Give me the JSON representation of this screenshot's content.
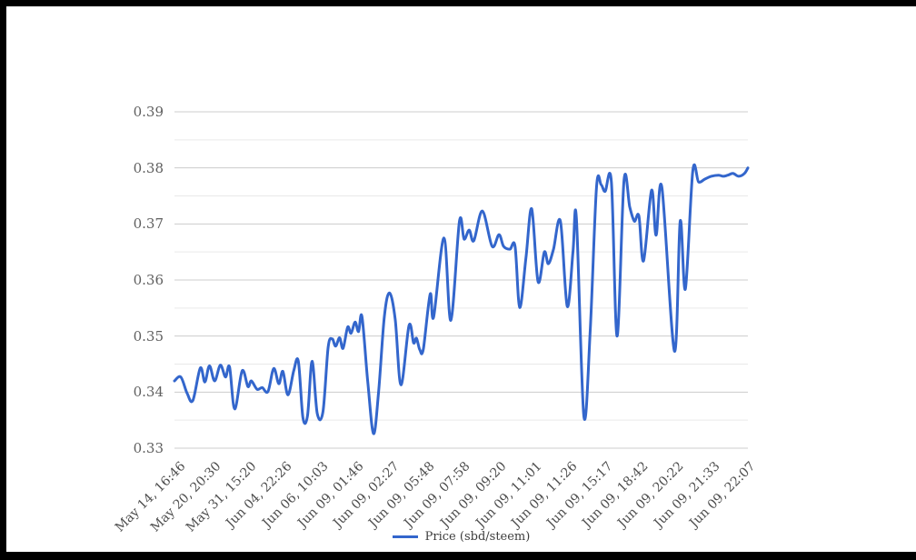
{
  "frame": {
    "border_color": "#000000",
    "page_background": "#ffffff"
  },
  "chart_data": {
    "type": "line",
    "title": "",
    "xlabel": "",
    "ylabel": "",
    "legend": {
      "position": "bottom",
      "label": "Price (sbd/steem)"
    },
    "grid": {
      "on": true,
      "major_color": "#cccccc",
      "minor_color": "#e9e9e9"
    },
    "y_axis": {
      "min": 0.33,
      "max": 0.39,
      "major_interval": 0.01,
      "minor_interval": 0.005,
      "ticks": [
        "0.39",
        "0.38",
        "0.37",
        "0.36",
        "0.35",
        "0.34",
        "0.33"
      ]
    },
    "x_axis": {
      "tick_labels": [
        "May 14, 16:46",
        "May 20, 20:30",
        "May 31, 15:20",
        "Jun 04, 22:26",
        "Jun 06, 10:03",
        "Jun 09, 01:46",
        "Jun 09, 02:27",
        "Jun 09, 05:48",
        "Jun 09, 07:58",
        "Jun 09, 09:20",
        "Jun 09, 11:01",
        "Jun 09, 11:26",
        "Jun 09, 15:17",
        "Jun 09, 18:42",
        "Jun 09, 20:22",
        "Jun 09, 21:33",
        "Jun 09, 22:07"
      ],
      "label_rotation_deg": -45
    },
    "series": [
      {
        "name": "Price (sbd/steem)",
        "color": "#3366cc",
        "line_width": 3,
        "points": [
          [
            0.0,
            0.342
          ],
          [
            0.011,
            0.3427
          ],
          [
            0.022,
            0.3398
          ],
          [
            0.032,
            0.3385
          ],
          [
            0.045,
            0.3443
          ],
          [
            0.053,
            0.3418
          ],
          [
            0.061,
            0.3447
          ],
          [
            0.07,
            0.342
          ],
          [
            0.08,
            0.3448
          ],
          [
            0.089,
            0.3427
          ],
          [
            0.096,
            0.3445
          ],
          [
            0.105,
            0.337
          ],
          [
            0.118,
            0.3438
          ],
          [
            0.128,
            0.341
          ],
          [
            0.134,
            0.342
          ],
          [
            0.144,
            0.3405
          ],
          [
            0.153,
            0.3408
          ],
          [
            0.163,
            0.3401
          ],
          [
            0.173,
            0.3442
          ],
          [
            0.182,
            0.3415
          ],
          [
            0.189,
            0.3437
          ],
          [
            0.198,
            0.3395
          ],
          [
            0.208,
            0.3438
          ],
          [
            0.216,
            0.3455
          ],
          [
            0.224,
            0.3355
          ],
          [
            0.232,
            0.3358
          ],
          [
            0.24,
            0.3455
          ],
          [
            0.249,
            0.3362
          ],
          [
            0.259,
            0.3365
          ],
          [
            0.268,
            0.348
          ],
          [
            0.275,
            0.3495
          ],
          [
            0.281,
            0.3482
          ],
          [
            0.288,
            0.3497
          ],
          [
            0.294,
            0.3478
          ],
          [
            0.302,
            0.3516
          ],
          [
            0.308,
            0.3505
          ],
          [
            0.315,
            0.3525
          ],
          [
            0.321,
            0.3508
          ],
          [
            0.327,
            0.3535
          ],
          [
            0.337,
            0.342
          ],
          [
            0.347,
            0.3326
          ],
          [
            0.356,
            0.34
          ],
          [
            0.366,
            0.3534
          ],
          [
            0.375,
            0.3577
          ],
          [
            0.385,
            0.353
          ],
          [
            0.395,
            0.3413
          ],
          [
            0.409,
            0.3519
          ],
          [
            0.417,
            0.3488
          ],
          [
            0.422,
            0.3496
          ],
          [
            0.428,
            0.3475
          ],
          [
            0.434,
            0.3477
          ],
          [
            0.446,
            0.3575
          ],
          [
            0.452,
            0.3534
          ],
          [
            0.47,
            0.3675
          ],
          [
            0.482,
            0.3528
          ],
          [
            0.497,
            0.3705
          ],
          [
            0.505,
            0.3673
          ],
          [
            0.514,
            0.3689
          ],
          [
            0.522,
            0.367
          ],
          [
            0.537,
            0.3723
          ],
          [
            0.554,
            0.366
          ],
          [
            0.566,
            0.3681
          ],
          [
            0.574,
            0.366
          ],
          [
            0.585,
            0.3655
          ],
          [
            0.594,
            0.366
          ],
          [
            0.602,
            0.3551
          ],
          [
            0.613,
            0.364
          ],
          [
            0.623,
            0.3727
          ],
          [
            0.634,
            0.3597
          ],
          [
            0.645,
            0.365
          ],
          [
            0.652,
            0.3629
          ],
          [
            0.661,
            0.3655
          ],
          [
            0.673,
            0.3705
          ],
          [
            0.685,
            0.3553
          ],
          [
            0.695,
            0.365
          ],
          [
            0.701,
            0.371
          ],
          [
            0.714,
            0.3357
          ],
          [
            0.725,
            0.351
          ],
          [
            0.736,
            0.3765
          ],
          [
            0.744,
            0.377
          ],
          [
            0.751,
            0.3758
          ],
          [
            0.762,
            0.3775
          ],
          [
            0.772,
            0.35
          ],
          [
            0.784,
            0.3778
          ],
          [
            0.794,
            0.373
          ],
          [
            0.802,
            0.3705
          ],
          [
            0.81,
            0.3714
          ],
          [
            0.818,
            0.3634
          ],
          [
            0.832,
            0.376
          ],
          [
            0.84,
            0.368
          ],
          [
            0.85,
            0.3765
          ],
          [
            0.872,
            0.3473
          ],
          [
            0.882,
            0.3705
          ],
          [
            0.891,
            0.3584
          ],
          [
            0.904,
            0.3795
          ],
          [
            0.914,
            0.3775
          ],
          [
            0.925,
            0.378
          ],
          [
            0.936,
            0.3785
          ],
          [
            0.949,
            0.3787
          ],
          [
            0.957,
            0.3785
          ],
          [
            0.965,
            0.3787
          ],
          [
            0.974,
            0.379
          ],
          [
            0.984,
            0.3785
          ],
          [
            0.994,
            0.379
          ],
          [
            1.0,
            0.38
          ]
        ]
      }
    ]
  },
  "layout_note_visible_values_only": true
}
